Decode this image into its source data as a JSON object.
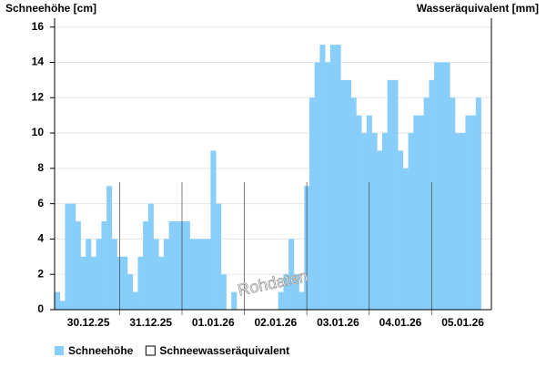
{
  "chart_data": {
    "type": "bar",
    "y_label": "Schneehöhe [cm]",
    "y2_label": "Wasseräquivalent [mm]",
    "annotation": "Rohdaten",
    "categories": [
      null,
      null,
      null,
      null,
      null,
      null,
      "30.12.25",
      null,
      null,
      null,
      null,
      null,
      null,
      null,
      null,
      null,
      null,
      null,
      "31.12.25",
      null,
      null,
      null,
      null,
      null,
      null,
      null,
      null,
      null,
      null,
      null,
      "01.01.26",
      null,
      null,
      null,
      null,
      null,
      null,
      null,
      null,
      null,
      null,
      null,
      "02.01.26",
      null,
      null,
      null,
      null,
      null,
      null,
      null,
      null,
      null,
      null,
      null,
      "03.01.26",
      null,
      null,
      null,
      null,
      null,
      null,
      null,
      null,
      null,
      null,
      null,
      "04.01.26",
      null,
      null,
      null,
      null,
      null,
      null,
      null,
      null,
      null,
      null,
      null,
      "05.01.26",
      null,
      null,
      null,
      null,
      null
    ],
    "series": [
      {
        "name": "Schneehöhe",
        "color": "#87cefa",
        "values": [
          1,
          0.5,
          6,
          6,
          5,
          3,
          4,
          3,
          4,
          5,
          7,
          4,
          3,
          3,
          2,
          1,
          3,
          5,
          6,
          4,
          3,
          4,
          5,
          5,
          5,
          5,
          4,
          4,
          4,
          4,
          9,
          6,
          2,
          0,
          1,
          0,
          0,
          0,
          0,
          0,
          0,
          0,
          0,
          1,
          2,
          4,
          2,
          1,
          7,
          12,
          14,
          15,
          14,
          15,
          15,
          13,
          13,
          12,
          11,
          10,
          11,
          10,
          9,
          10,
          13,
          13,
          9,
          8,
          10,
          11,
          11,
          12,
          13,
          14,
          14,
          14,
          12,
          10,
          10,
          11,
          11,
          12,
          null,
          null
        ]
      },
      {
        "name": "Schneewasseräquivalent",
        "color": "#ffffff",
        "values": [
          null,
          null,
          null,
          null,
          null,
          null,
          null,
          null,
          null,
          null,
          null,
          null,
          null,
          null,
          null,
          null,
          null,
          null,
          null,
          null,
          null,
          null,
          null,
          null,
          null,
          null,
          null,
          null,
          null,
          null,
          null,
          null,
          null,
          null,
          null,
          null,
          null,
          null,
          null,
          null,
          null,
          null,
          null,
          null,
          null,
          null,
          null,
          null,
          null,
          null,
          null,
          null,
          null,
          null,
          null,
          null,
          null,
          null,
          null,
          null,
          null,
          null,
          null,
          null,
          null,
          null,
          null,
          null,
          null,
          null,
          null,
          null,
          null,
          null,
          null,
          null,
          null,
          null,
          null,
          null,
          null,
          null,
          null,
          null
        ]
      }
    ],
    "ylim": [
      0,
      16.5
    ],
    "yticks": [
      0,
      2,
      4,
      6,
      8,
      10,
      12,
      14,
      16
    ],
    "grid": true
  }
}
